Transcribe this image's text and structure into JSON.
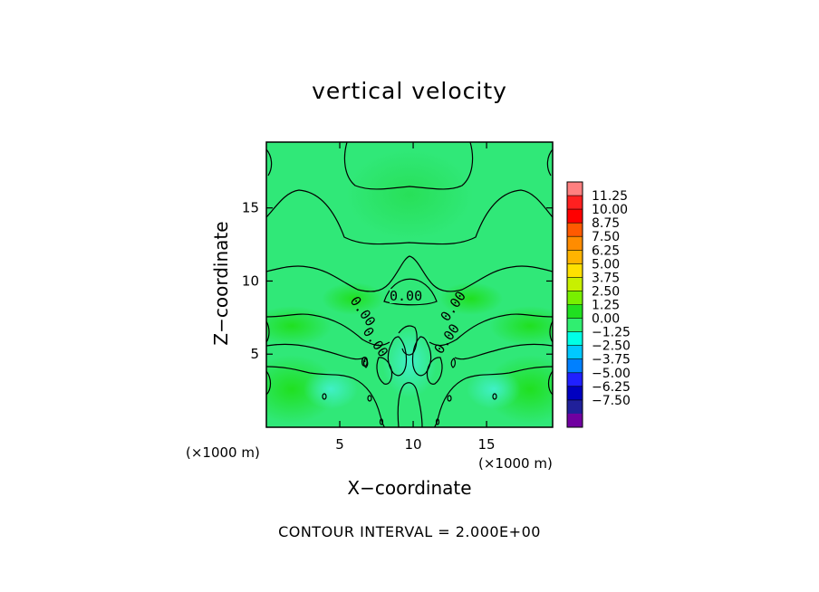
{
  "chart_data": {
    "type": "heatmap",
    "title": "vertical velocity",
    "xlabel": "X−coordinate",
    "ylabel": "Z−coordinate",
    "x_unit": "(×1000 m)",
    "x_unit_right": "(×1000 m)",
    "xlim": [
      0,
      19.5
    ],
    "ylim": [
      0,
      19.5
    ],
    "x_ticks": [
      5,
      10,
      15
    ],
    "y_ticks": [
      5,
      10,
      15
    ],
    "contour_labels": [
      "0.00",
      "0.00",
      "0.00",
      "0.00",
      "0.00",
      "0.00",
      "0.00",
      "0.00",
      "0"
    ],
    "contour_interval": "CONTOUR INTERVAL = 2.000E+00",
    "colorbar": {
      "levels": [
        "11.25",
        "10.00",
        "8.75",
        "7.50",
        "6.25",
        "5.00",
        "3.75",
        "2.50",
        "1.25",
        "0.00",
        "−1.25",
        "−2.50",
        "−3.75",
        "−5.00",
        "−6.25",
        "−7.50"
      ],
      "colors": [
        "#ff8080",
        "#ff2020",
        "#ff0000",
        "#ff5a00",
        "#ff8c00",
        "#ffb400",
        "#ffe000",
        "#c8f000",
        "#78f000",
        "#20e020",
        "#30ee70",
        "#00ffe6",
        "#00c8ff",
        "#0080ff",
        "#2020ff",
        "#0000c0",
        "#20209a",
        "#7000a0"
      ]
    },
    "dominant_field_color": "#30e878",
    "grid": false
  }
}
